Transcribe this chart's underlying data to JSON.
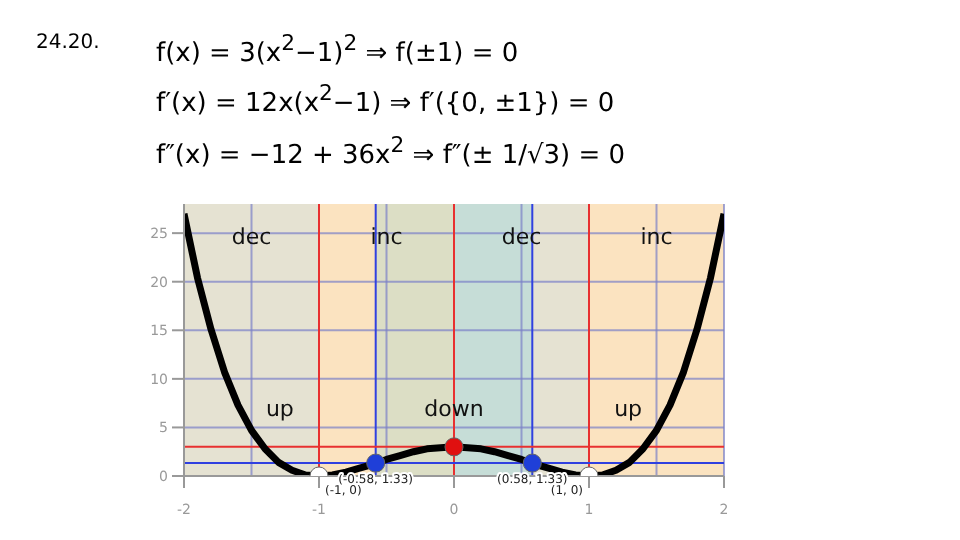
{
  "chart_data": {
    "type": "line",
    "title": "24.20.",
    "annotations": [
      "f(x) = 3(x$^{2}$−1)$^{2}$ ⇒ f(±1) = 0",
      "f′(x) = 12x(x$^{2}$−1) ⇒ f′({0, ±1}) = 0",
      "f″(x) = −12 + 36x$^{2}$ ⇒ f″(± 1/√3) = 0",
      {
        "text": "(-1, 0)",
        "x": -1,
        "y": 0
      },
      {
        "text": "(-0.58, 1.33)",
        "x": -0.58,
        "y": 1.33
      },
      {
        "text": "(0.58, 1.33)",
        "x": 0.58,
        "y": 1.33
      },
      {
        "text": "(1, 0)",
        "x": 1,
        "y": 0
      }
    ],
    "x": [
      -2,
      -1.9,
      -1.8,
      -1.7,
      -1.6,
      -1.5,
      -1.4,
      -1.3,
      -1.2,
      -1.1,
      -1,
      -0.9,
      -0.8,
      -0.7,
      -0.6,
      -0.5,
      -0.4,
      -0.3,
      -0.2,
      -0.1,
      0,
      0.1,
      0.2,
      0.3,
      0.4,
      0.5,
      0.6,
      0.7,
      0.8,
      0.9,
      1,
      1.1,
      1.2,
      1.3,
      1.4,
      1.5,
      1.6,
      1.7,
      1.8,
      1.9,
      2
    ],
    "series": [
      {
        "color": "#000000",
        "values": [
          27,
          20.4,
          15.1,
          10.7,
          7.3,
          4.7,
          2.8,
          1.4,
          0.6,
          0.1,
          0,
          0.1,
          0.4,
          0.8,
          1.2,
          1.7,
          2.1,
          2.5,
          2.8,
          2.9,
          3,
          2.9,
          2.8,
          2.5,
          2.1,
          1.7,
          1.2,
          0.8,
          0.4,
          0.1,
          0,
          0.1,
          0.6,
          1.4,
          2.8,
          4.7,
          7.3,
          10.7,
          15.1,
          20.4,
          27
        ]
      },
      {
        "type": "scatter",
        "x": [
          -1,
          -0.58,
          0,
          0.58,
          1
        ],
        "values": [
          0,
          1.33,
          3,
          1.33,
          0
        ],
        "colors": [
          "#ffffff",
          "#1f3fd8",
          "#e01010",
          "#1f3fd8",
          "#ffffff"
        ]
      }
    ],
    "xlim": [
      -2,
      2
    ],
    "xticks": [
      -2,
      -1,
      0,
      1,
      2
    ],
    "ylim": [
      0,
      28
    ],
    "yticks": [
      0,
      5,
      10,
      15,
      20,
      25
    ],
    "grid": true,
    "bands": [
      {
        "axis": "x",
        "from": -2,
        "to": -1,
        "label": "dec",
        "color": "#b8bcf8"
      },
      {
        "axis": "x",
        "from": -1,
        "to": 0,
        "label": "inc",
        "color": "#f8c0c4"
      },
      {
        "axis": "x",
        "from": 0,
        "to": 1,
        "label": "dec",
        "color": "#b8bcf8"
      },
      {
        "axis": "x",
        "from": 1,
        "to": 2,
        "label": "inc",
        "color": "#f8c0c4"
      },
      {
        "axis": "x",
        "from": -2,
        "to": -0.58,
        "label": "up",
        "color": "#fbf5b8"
      },
      {
        "axis": "x",
        "from": -0.58,
        "to": 0.58,
        "label": "down",
        "color": "#c8ecc0"
      },
      {
        "axis": "x",
        "from": 0.58,
        "to": 2,
        "label": "up",
        "color": "#fbf5b8"
      }
    ],
    "ref_lines": [
      {
        "axis": "x",
        "value": -1,
        "color": "#e83030"
      },
      {
        "axis": "x",
        "value": 0,
        "color": "#e83030"
      },
      {
        "axis": "x",
        "value": 1,
        "color": "#e83030"
      },
      {
        "axis": "x",
        "value": -0.58,
        "color": "#3040e0"
      },
      {
        "axis": "x",
        "value": 0.58,
        "color": "#3040e0"
      },
      {
        "axis": "y",
        "value": 3,
        "color": "#e83030"
      },
      {
        "axis": "y",
        "value": 1.33,
        "color": "#3040e0"
      }
    ]
  }
}
